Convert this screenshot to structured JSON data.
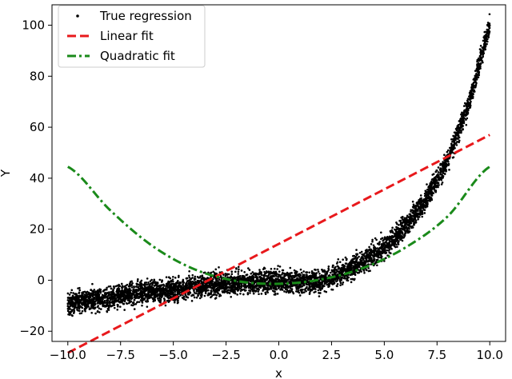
{
  "chart_data": {
    "type": "scatter",
    "xlabel": "x",
    "ylabel": "Y",
    "xlim": [
      -10.75,
      10.75
    ],
    "ylim": [
      -24,
      108
    ],
    "xticks": [
      -10.0,
      -7.5,
      -5.0,
      -2.5,
      0.0,
      2.5,
      5.0,
      7.5,
      10.0
    ],
    "xtick_labels": [
      "−10.0",
      "−7.5",
      "−5.0",
      "−2.5",
      "0.0",
      "2.5",
      "5.0",
      "7.5",
      "10.0"
    ],
    "yticks": [
      -20,
      0,
      20,
      40,
      60,
      80,
      100
    ],
    "ytick_labels": [
      "−20",
      "0",
      "20",
      "40",
      "60",
      "80",
      "100"
    ],
    "grid": false,
    "legend_position": "top-left",
    "series": [
      {
        "name": "True regression",
        "kind": "scatter",
        "color": "#000000",
        "x": [
          -10,
          -9,
          -8,
          -7,
          -6,
          -5,
          -4,
          -3,
          -2,
          -1,
          0,
          1,
          2,
          2.5,
          3,
          4,
          5,
          6,
          7,
          8,
          9,
          10
        ],
        "y": [
          -9,
          -8,
          -7,
          -5.5,
          -4.5,
          -4,
          -2.5,
          -1.5,
          -1,
          -0.5,
          -0.5,
          -0.5,
          -0.5,
          1,
          3,
          7,
          13,
          21,
          32,
          47,
          69,
          100
        ],
        "noise": 2.5
      },
      {
        "name": "Linear fit",
        "kind": "line",
        "style": "dashed",
        "color": "#e8191c",
        "x": [
          -10,
          10
        ],
        "y": [
          -28.5,
          57
        ]
      },
      {
        "name": "Quadratic fit",
        "kind": "line",
        "style": "dashdot",
        "color": "#1a8a1a",
        "x": [
          -10,
          -8,
          -6,
          -4,
          -2,
          0,
          2,
          4,
          6,
          8,
          10
        ],
        "y": [
          44.5,
          27.5,
          13.5,
          4.3,
          -0.3,
          -1.4,
          0.3,
          4.8,
          12.8,
          25,
          44.5
        ]
      }
    ]
  }
}
